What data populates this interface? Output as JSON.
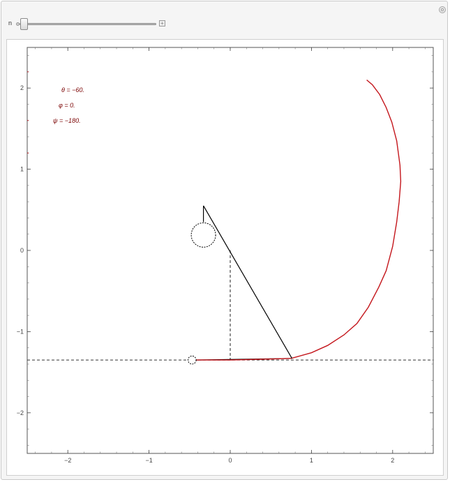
{
  "controls": {
    "slider_label": "n",
    "slider_value": 0.03
  },
  "chart_data": {
    "type": "scatter",
    "xlim": [
      -2.5,
      2.5
    ],
    "ylim": [
      -2.5,
      2.5
    ],
    "xticks": [
      -2,
      -1,
      0,
      1,
      2
    ],
    "yticks": [
      2,
      1,
      0,
      -1,
      -2
    ],
    "xtick_labels": [
      "−2",
      "−1",
      "0",
      "1",
      "2"
    ],
    "ytick_labels": [
      "2",
      "1",
      "0",
      "−1",
      "−2"
    ],
    "grid": false,
    "annotations": {
      "theta": "θ = −60.",
      "phi": "φ = 0.",
      "psi": "ψ = −180."
    },
    "trajectory": {
      "color": "#c4161c",
      "points": [
        [
          -0.47,
          -1.35
        ],
        [
          0.0,
          -1.35
        ],
        [
          0.4,
          -1.34
        ],
        [
          0.75,
          -1.33
        ],
        [
          1.0,
          -1.26
        ],
        [
          1.2,
          -1.17
        ],
        [
          1.4,
          -1.04
        ],
        [
          1.56,
          -0.9
        ],
        [
          1.7,
          -0.7
        ],
        [
          1.83,
          -0.45
        ],
        [
          1.92,
          -0.25
        ],
        [
          2.0,
          0.05
        ],
        [
          2.05,
          0.35
        ],
        [
          2.08,
          0.6
        ],
        [
          2.1,
          0.85
        ],
        [
          2.09,
          1.05
        ],
        [
          2.05,
          1.35
        ],
        [
          1.99,
          1.58
        ],
        [
          1.92,
          1.76
        ],
        [
          1.84,
          1.92
        ],
        [
          1.75,
          2.04
        ],
        [
          1.68,
          2.1
        ]
      ]
    },
    "pendulum_line": [
      [
        0.76,
        -1.33
      ],
      [
        -0.33,
        0.55
      ]
    ],
    "pendulum_short": [
      [
        -0.33,
        0.55
      ],
      [
        -0.33,
        0.35
      ]
    ],
    "circle": {
      "center": [
        -0.33,
        0.19
      ],
      "radius": 0.15
    },
    "small_circle": {
      "center": [
        -0.47,
        -1.35
      ],
      "radius": 0.05
    },
    "vertical_dashed": [
      [
        0.0,
        0.0
      ],
      [
        0.0,
        -1.35
      ]
    ],
    "horizontal_dashed_y": -1.35,
    "black_ground": [
      [
        -0.42,
        -1.35
      ],
      [
        0.76,
        -1.33
      ]
    ]
  }
}
